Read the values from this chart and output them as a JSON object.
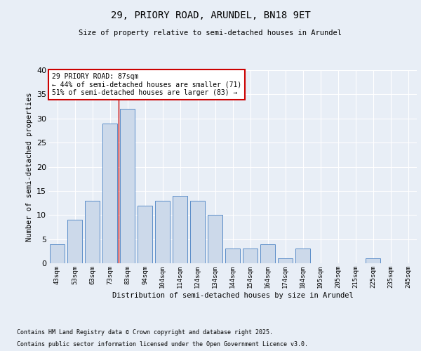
{
  "title1": "29, PRIORY ROAD, ARUNDEL, BN18 9ET",
  "title2": "Size of property relative to semi-detached houses in Arundel",
  "xlabel": "Distribution of semi-detached houses by size in Arundel",
  "ylabel": "Number of semi-detached properties",
  "categories": [
    "43sqm",
    "53sqm",
    "63sqm",
    "73sqm",
    "83sqm",
    "94sqm",
    "104sqm",
    "114sqm",
    "124sqm",
    "134sqm",
    "144sqm",
    "154sqm",
    "164sqm",
    "174sqm",
    "184sqm",
    "195sqm",
    "205sqm",
    "215sqm",
    "225sqm",
    "235sqm",
    "245sqm"
  ],
  "values": [
    4,
    9,
    13,
    29,
    32,
    12,
    13,
    14,
    13,
    10,
    3,
    3,
    4,
    1,
    3,
    0,
    0,
    0,
    1,
    0,
    0
  ],
  "bar_color": "#ccd9ea",
  "bar_edge_color": "#5b8dc8",
  "vline_index": 4,
  "annotation_text": "29 PRIORY ROAD: 87sqm\n← 44% of semi-detached houses are smaller (71)\n51% of semi-detached houses are larger (83) →",
  "annotation_box_color": "#ffffff",
  "annotation_box_edge_color": "#cc0000",
  "vline_color": "#cc0000",
  "ylim": [
    0,
    40
  ],
  "yticks": [
    0,
    5,
    10,
    15,
    20,
    25,
    30,
    35,
    40
  ],
  "background_color": "#e8eef6",
  "footer_line1": "Contains HM Land Registry data © Crown copyright and database right 2025.",
  "footer_line2": "Contains public sector information licensed under the Open Government Licence v3.0."
}
